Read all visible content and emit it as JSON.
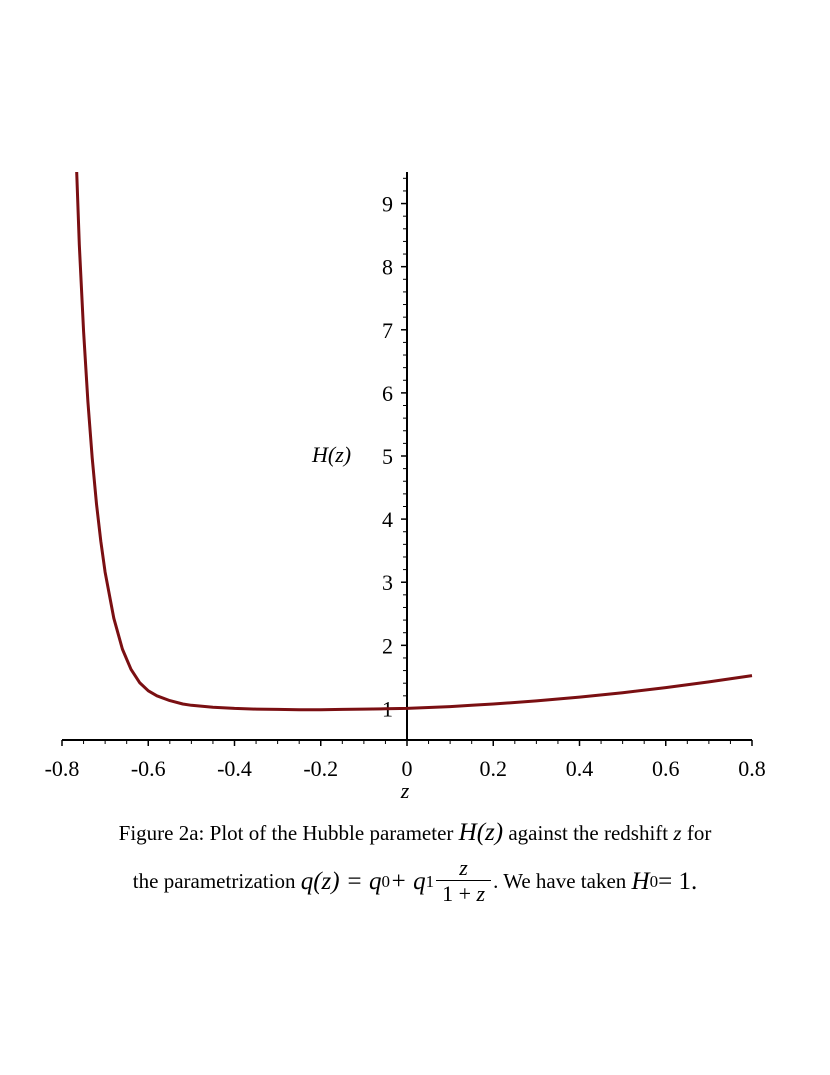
{
  "chart_data": {
    "type": "line",
    "title": "",
    "xlabel": "z",
    "ylabel": "H(z)",
    "xlim": [
      -0.8,
      0.8
    ],
    "ylim": [
      0.5,
      9.5
    ],
    "x_ticks": [
      -0.8,
      -0.6,
      -0.4,
      -0.2,
      0,
      0.2,
      0.4,
      0.6,
      0.8
    ],
    "x_tick_labels": [
      "-0.8",
      "-0.6",
      "-0.4",
      "-0.2",
      "0",
      "0.2",
      "0.4",
      "0.6",
      "0.8"
    ],
    "y_ticks": [
      1,
      2,
      3,
      4,
      5,
      6,
      7,
      8,
      9
    ],
    "y_tick_labels": [
      "1",
      "2",
      "3",
      "4",
      "5",
      "6",
      "7",
      "8",
      "9"
    ],
    "grid": false,
    "line_color": "#7a0f12",
    "series": [
      {
        "x": [
          -0.766,
          -0.76,
          -0.75,
          -0.74,
          -0.73,
          -0.72,
          -0.71,
          -0.7,
          -0.68,
          -0.66,
          -0.64,
          -0.62,
          -0.6,
          -0.58,
          -0.55,
          -0.52,
          -0.5,
          -0.45,
          -0.4,
          -0.35,
          -0.3,
          -0.25,
          -0.2,
          -0.15,
          -0.1,
          -0.05,
          0.0,
          0.05,
          0.1,
          0.15,
          0.2,
          0.3,
          0.4,
          0.5,
          0.6,
          0.7,
          0.8
        ],
        "y": [
          9.5,
          8.35,
          6.97,
          5.86,
          4.97,
          4.24,
          3.65,
          3.16,
          2.43,
          1.94,
          1.62,
          1.41,
          1.28,
          1.2,
          1.125,
          1.07,
          1.05,
          1.02,
          1.0,
          0.99,
          0.985,
          0.98,
          0.98,
          0.985,
          0.99,
          0.995,
          1.0,
          1.015,
          1.03,
          1.05,
          1.07,
          1.12,
          1.18,
          1.25,
          1.33,
          1.42,
          1.52
        ]
      }
    ]
  },
  "caption": {
    "line1_text": "Figure 2a: Plot of the Hubble parameter ",
    "line1_math": "H(z)",
    "line1_text2": " against the redshift ",
    "line1_var": "z",
    "line1_text3": " for",
    "line2_text": "the parametrization ",
    "line2_q": "q(z) = q",
    "line2_sub0": "0",
    "line2_plus": " + q",
    "line2_sub1": "1",
    "line2_num": "z",
    "line2_den_pre": "1 + ",
    "line2_den_var": "z",
    "line2_text2": ". We have taken ",
    "line2_H": "H",
    "line2_Hsub": "0",
    "line2_eq": " = 1."
  }
}
